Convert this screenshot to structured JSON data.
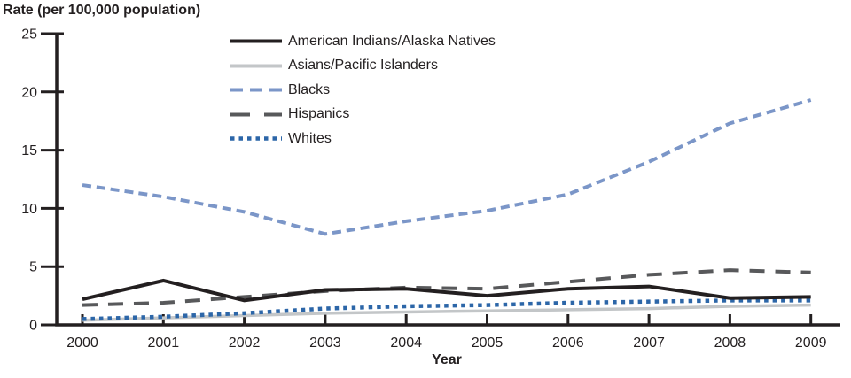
{
  "title": "Rate (per 100,000 population)",
  "xaxis_title": "Year",
  "colors": {
    "axis": "#231f20",
    "american_indians": "#231f20",
    "asians": "#c3c6c8",
    "blacks": "#7b96c8",
    "hispanics": "#58595b",
    "whites": "#2c66a8"
  },
  "chart_data": {
    "type": "line",
    "title": "Rate (per 100,000 population)",
    "xlabel": "Year",
    "ylabel": "Rate (per 100,000 population)",
    "categories": [
      "2000",
      "2001",
      "2002",
      "2003",
      "2004",
      "2005",
      "2006",
      "2007",
      "2008",
      "2009"
    ],
    "yticks": [
      0,
      5,
      10,
      15,
      20,
      25
    ],
    "ylim": [
      0,
      25
    ],
    "grid": false,
    "legend_position": "top-center-inside",
    "series": [
      {
        "id": "american-indians",
        "name": "American Indians/Alaska Natives",
        "style": "solid",
        "color": "#231f20",
        "width": 4,
        "values": [
          2.2,
          3.8,
          2.1,
          3.0,
          3.1,
          2.5,
          3.1,
          3.3,
          2.3,
          2.4
        ]
      },
      {
        "id": "asians",
        "name": "Asians/Pacific Islanders",
        "style": "solid",
        "color": "#c3c6c8",
        "width": 3.5,
        "values": [
          0.4,
          0.6,
          0.8,
          1.0,
          1.1,
          1.2,
          1.3,
          1.4,
          1.6,
          1.7
        ]
      },
      {
        "id": "blacks",
        "name": "Blacks",
        "style": "dashed",
        "color": "#7b96c8",
        "width": 4,
        "values": [
          12.0,
          11.0,
          9.7,
          7.8,
          8.9,
          9.8,
          11.2,
          14.0,
          17.3,
          19.3
        ]
      },
      {
        "id": "hispanics",
        "name": "Hispanics",
        "style": "long-dashed",
        "color": "#58595b",
        "width": 4,
        "values": [
          1.7,
          1.9,
          2.4,
          2.9,
          3.2,
          3.1,
          3.7,
          4.3,
          4.7,
          4.5
        ]
      },
      {
        "id": "whites",
        "name": "Whites",
        "style": "dotted",
        "color": "#2c66a8",
        "width": 4.5,
        "values": [
          0.5,
          0.7,
          1.0,
          1.4,
          1.6,
          1.7,
          1.9,
          2.0,
          2.1,
          2.1
        ]
      }
    ]
  }
}
